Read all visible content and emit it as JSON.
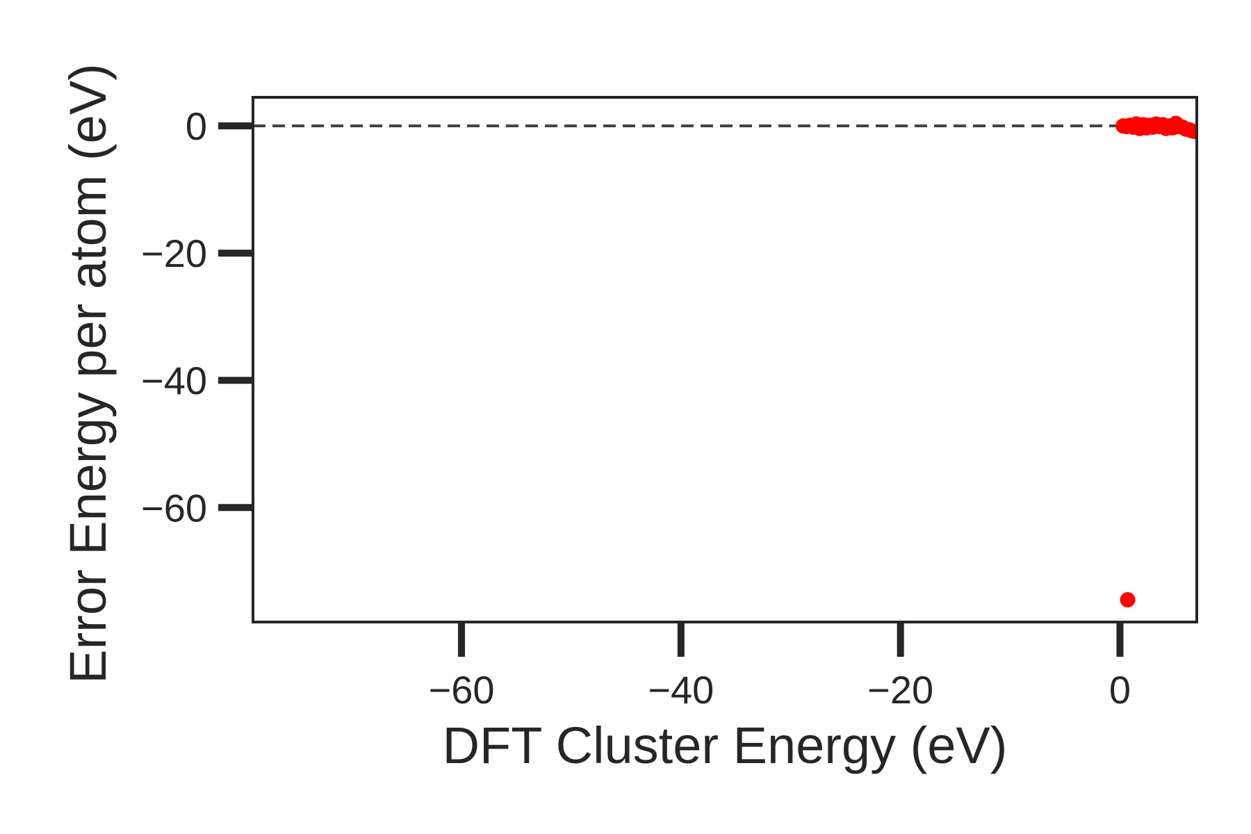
{
  "chart_data": {
    "type": "scatter",
    "title": "",
    "xlabel": "DFT Cluster Energy (eV)",
    "ylabel": "Error Energy per atom (eV)",
    "xlim": [
      -79,
      7
    ],
    "ylim": [
      -78,
      4.5
    ],
    "xticks": [
      -60,
      -40,
      -20,
      0
    ],
    "yticks": [
      0,
      -20,
      -40,
      -60
    ],
    "xtick_labels": [
      "−60",
      "−40",
      "−20",
      "0"
    ],
    "ytick_labels": [
      "0",
      "−20",
      "−40",
      "−60"
    ],
    "grid": false,
    "legend": "none",
    "reference_line": {
      "y": 0,
      "style": "dashed",
      "color": "#404040"
    },
    "series": [
      {
        "color": "#ff0000",
        "points": [
          [
            0.3,
            0.0
          ],
          [
            0.6,
            -0.1
          ],
          [
            0.9,
            0.1
          ],
          [
            1.2,
            -0.2
          ],
          [
            1.5,
            0.3
          ],
          [
            1.8,
            -0.4
          ],
          [
            2.1,
            0.2
          ],
          [
            2.4,
            -0.3
          ],
          [
            2.7,
            0.1
          ],
          [
            3.0,
            -0.2
          ],
          [
            3.3,
            0.3
          ],
          [
            3.6,
            -0.1
          ],
          [
            3.9,
            0.2
          ],
          [
            4.2,
            -0.4
          ],
          [
            4.5,
            0.0
          ],
          [
            4.8,
            -0.3
          ],
          [
            5.1,
            0.4
          ],
          [
            5.4,
            -0.1
          ],
          [
            5.7,
            -0.2
          ],
          [
            6.0,
            -0.5
          ],
          [
            6.3,
            -0.6
          ],
          [
            6.6,
            -0.8
          ],
          [
            6.9,
            -0.9
          ],
          [
            0.7,
            -74.5
          ]
        ]
      }
    ]
  }
}
